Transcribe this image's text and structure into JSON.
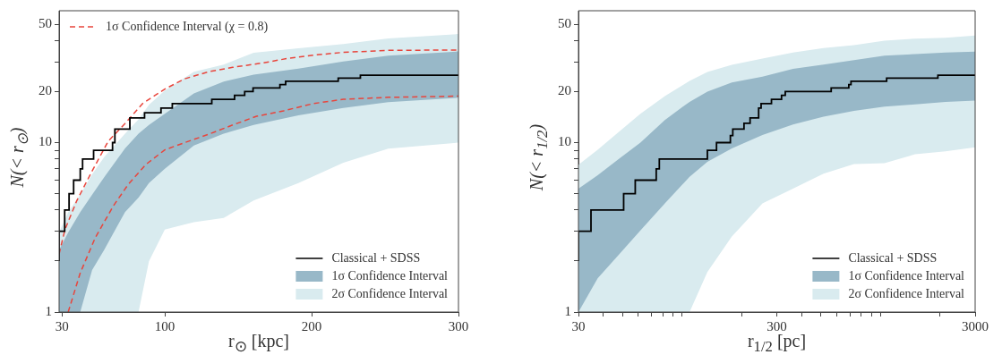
{
  "chart_data": [
    {
      "type": "line",
      "xlabel": "r$_{⊙}$ [kpc]",
      "ylabel": "N(< r$_{⊙}$)",
      "log": "y",
      "grid": false,
      "legend": [
        "top left",
        "bottom right"
      ],
      "xlim": [
        28,
        300
      ],
      "xticks": [
        30,
        100,
        200,
        300
      ],
      "ylim": [
        1,
        60
      ],
      "yticks": [
        1,
        {
          "value": 2,
          "label": null
        },
        {
          "value": 3,
          "label": null
        },
        {
          "value": 4,
          "label": null
        },
        {
          "value": 5,
          "label": null
        },
        {
          "value": 6,
          "label": null
        },
        {
          "value": 7,
          "label": null
        },
        {
          "value": 8,
          "label": null
        },
        {
          "value": 9,
          "label": null
        },
        10,
        20,
        {
          "value": 30,
          "label": null
        },
        {
          "value": 40,
          "label": null
        },
        50
      ],
      "series": [
        {
          "type": "area",
          "name": "2σ Confidence Interval",
          "color": "#d9ebef",
          "x": [
            28,
            34.2,
            42.4,
            50.5,
            58.7,
            72.9,
            82.1,
            89.2,
            100,
            119.8,
            140.1,
            160.5,
            191,
            221.6,
            252.2,
            300
          ],
          "values": [
            null,
            null,
            null,
            null,
            null,
            null,
            null,
            null,
            null,
            null,
            null,
            null,
            null,
            null,
            null,
            null
          ],
          "lower": [
            1,
            1,
            1,
            1,
            1,
            1,
            1,
            1.99,
            3.07,
            3.39,
            3.59,
            4.55,
            5.77,
            7.6,
            9.2,
            10
          ],
          "upper": [
            2.95,
            3.89,
            4.92,
            6.5,
            8.2,
            11.3,
            13.7,
            16.7,
            20.3,
            26.2,
            28.9,
            33.9,
            36,
            38.2,
            41.2,
            43.7
          ]
        },
        {
          "type": "area",
          "name": "1σ Confidence Interval",
          "color": "#98b8c8",
          "x": [
            28,
            34.2,
            42.4,
            50.5,
            58.7,
            72.9,
            82.1,
            89.2,
            100,
            119.8,
            140.1,
            160.5,
            191,
            221.6,
            252.2,
            300
          ],
          "values": [
            null,
            null,
            null,
            null,
            null,
            null,
            null,
            null,
            null,
            null,
            null,
            null,
            null,
            null,
            null,
            null
          ],
          "lower": [
            1,
            1,
            1,
            1.77,
            2.33,
            3.89,
            4.73,
            5.77,
            7,
            9.6,
            11.3,
            12.7,
            14.5,
            16,
            17.3,
            18.4
          ],
          "upper": [
            2.33,
            2.95,
            3.89,
            4.92,
            6.24,
            9.24,
            11.3,
            12.7,
            14.8,
            19.5,
            22.9,
            25.2,
            27.3,
            30.1,
            32.6,
            34.5
          ]
        },
        {
          "type": "line",
          "name": "1σ Confidence Interval (χ = 0.8)",
          "line_style": "dashed",
          "color": "#e8453c",
          "x": [
            28,
            32,
            40.1,
            50.3,
            61.5,
            72.7,
            84.9,
            100,
            113.6,
            129.9,
            146.2,
            166.6,
            182.9,
            201.2,
            221.6,
            252.2,
            300
          ],
          "values": [
            2.2,
            3.07,
            4.55,
            6.75,
            10.2,
            12.9,
            17,
            20.7,
            23.8,
            26.2,
            27.8,
            29.5,
            31.3,
            32.8,
            34.1,
            35,
            35.2
          ]
        },
        {
          "type": "line",
          "line_style": "dashed",
          "color": "#e8453c",
          "x": [
            34.2,
            42.4,
            52.5,
            64.8,
            75,
            87.2,
            100,
            113.6,
            129.9,
            146.2,
            162.5,
            180.9,
            201.2,
            221.6,
            252.2,
            300
          ],
          "values": [
            1,
            1.7,
            2.73,
            4.21,
            5.65,
            7.44,
            9.06,
            10,
            11.2,
            12.7,
            14.3,
            15.4,
            17,
            18,
            18.5,
            18.8
          ]
        },
        {
          "type": "step",
          "name": "Classical + SDSS",
          "color": "#000000",
          "x": [
            28,
            31.8,
            34.8,
            37.9,
            42.4,
            44,
            51.5,
            64.4,
            66,
            76.2,
            86.2,
            97.4,
            105.1,
            132,
            147.5,
            154.4,
            160.1,
            178.4,
            182.3,
            218.1,
            233.2,
            254.2,
            300
          ],
          "values": [
            2,
            3,
            4,
            5,
            6,
            7,
            8,
            9,
            10,
            12,
            14,
            15,
            16,
            17,
            18,
            19,
            20,
            21,
            22,
            23,
            24,
            25,
            25
          ]
        }
      ]
    },
    {
      "type": "line",
      "xlabel": "r$_{1/2}$ [pc]",
      "ylabel": "N(< r$_{1/2}$)",
      "log": "xy",
      "grid": false,
      "legend": "bottom right",
      "xlim": [
        30,
        3000
      ],
      "xticks": [
        30,
        {
          "value": 40,
          "label": null
        },
        {
          "value": 50,
          "label": null
        },
        {
          "value": 60,
          "label": null
        },
        {
          "value": 70,
          "label": null
        },
        {
          "value": 80,
          "label": null
        },
        {
          "value": 90,
          "label": null
        },
        {
          "value": 100,
          "label": null
        },
        {
          "value": 200,
          "label": null
        },
        300,
        {
          "value": 400,
          "label": null
        },
        {
          "value": 500,
          "label": null
        },
        {
          "value": 600,
          "label": null
        },
        {
          "value": 700,
          "label": null
        },
        {
          "value": 800,
          "label": null
        },
        {
          "value": 900,
          "label": null
        },
        {
          "value": 1000,
          "label": null
        },
        {
          "value": 2000,
          "label": null
        },
        3000
      ],
      "ylim": [
        1,
        60
      ],
      "yticks": [
        1,
        {
          "value": 2,
          "label": null
        },
        {
          "value": 3,
          "label": null
        },
        {
          "value": 4,
          "label": null
        },
        {
          "value": 5,
          "label": null
        },
        {
          "value": 6,
          "label": null
        },
        {
          "value": 7,
          "label": null
        },
        {
          "value": 8,
          "label": null
        },
        {
          "value": 9,
          "label": null
        },
        10,
        20,
        {
          "value": 30,
          "label": null
        },
        {
          "value": 40,
          "label": null
        },
        50
      ],
      "series": [
        {
          "type": "area",
          "name": "2σ Confidence Interval",
          "color": "#d9ebef",
          "x": [
            30,
            37.5,
            48.1,
            61.6,
            81.8,
            109,
            134,
            178,
            254,
            362,
            516,
            735,
            1047,
            1493,
            2128,
            3000
          ],
          "values": [
            null,
            null,
            null,
            null,
            null,
            null,
            null,
            null,
            null,
            null,
            null,
            null,
            null,
            null,
            null,
            null
          ],
          "lower": [
            1,
            1,
            1,
            1,
            1,
            1,
            1.72,
            2.79,
            4.37,
            5.35,
            6.56,
            7.46,
            7.55,
            8.53,
            8.89,
            9.37
          ],
          "upper": [
            7.41,
            9.07,
            11.6,
            14.8,
            18.8,
            23.1,
            26.1,
            28.8,
            31.3,
            34,
            36.1,
            37.6,
            39.9,
            41.1,
            41.6,
            42.8
          ]
        },
        {
          "type": "area",
          "name": "1σ Confidence Interval",
          "color": "#98b8c8",
          "x": [
            30,
            37.5,
            48.1,
            61.6,
            81.8,
            109,
            134,
            178,
            254,
            362,
            516,
            735,
            1047,
            1493,
            2128,
            3000
          ],
          "values": [
            null,
            null,
            null,
            null,
            null,
            null,
            null,
            null,
            null,
            null,
            null,
            null,
            null,
            null,
            null,
            null
          ],
          "lower": [
            1,
            1.58,
            2.19,
            3.03,
            4.37,
            6.29,
            7.71,
            9.25,
            11.1,
            12.8,
            14.2,
            15.4,
            16.3,
            16.8,
            17.4,
            17.7
          ],
          "upper": [
            5.35,
            6.42,
            8.03,
            10,
            13.6,
            17.4,
            20,
            22.6,
            24.5,
            27.2,
            28.9,
            30.7,
            32.6,
            33.3,
            34,
            34.4
          ]
        },
        {
          "type": "step",
          "name": "Classical + SDSS",
          "color": "#000000",
          "x": [
            30,
            34.7,
            50.7,
            58,
            74,
            76.7,
            134,
            149,
            175,
            180,
            205,
            220,
            243,
            250,
            282,
            317,
            331,
            564,
            692,
            710,
            1074,
            1947,
            2585,
            3000
          ],
          "values": [
            2,
            3,
            4,
            5,
            6,
            7,
            8,
            9,
            10,
            11,
            12,
            13,
            14,
            16,
            17,
            18,
            19,
            20,
            21,
            22,
            23,
            24,
            25,
            25
          ]
        }
      ]
    }
  ]
}
